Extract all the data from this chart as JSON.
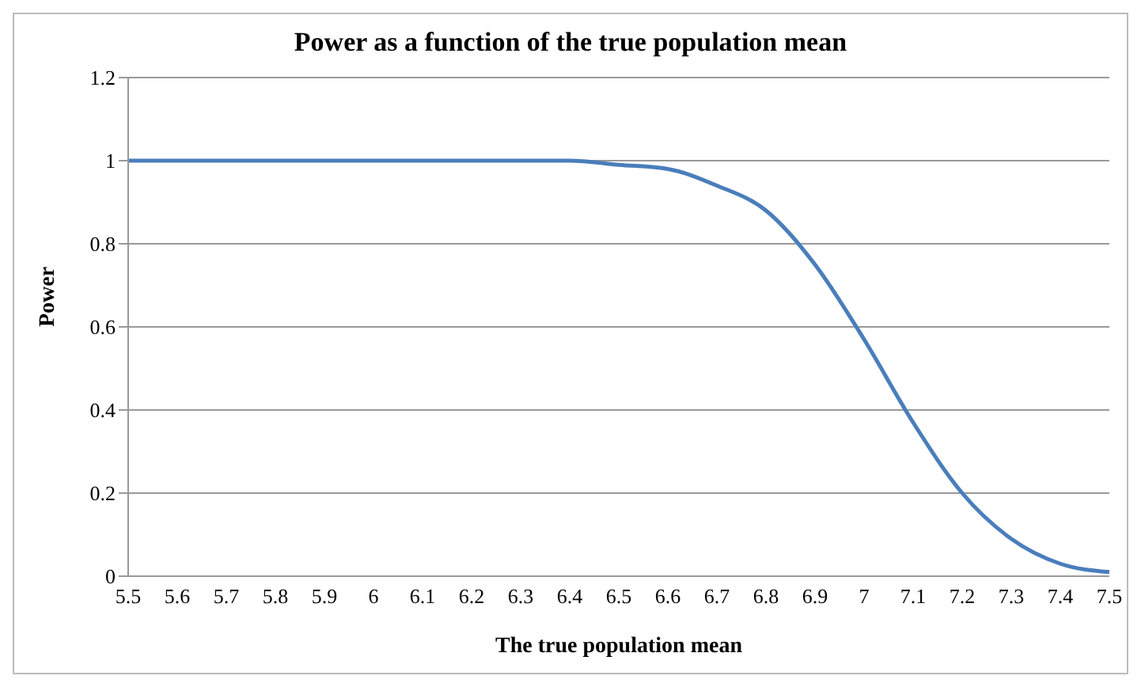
{
  "chart_data": {
    "type": "line",
    "title": "Power as a function of the true population mean",
    "xlabel": "The true population mean",
    "ylabel": "Power",
    "categories": [
      "5.5",
      "5.6",
      "5.7",
      "5.8",
      "5.9",
      "6",
      "6.1",
      "6.2",
      "6.3",
      "6.4",
      "6.5",
      "6.6",
      "6.7",
      "6.8",
      "6.9",
      "7",
      "7.1",
      "7.2",
      "7.3",
      "7.4",
      "7.5"
    ],
    "series": [
      {
        "color": "#4a7ebb",
        "values": [
          1,
          1,
          1,
          1,
          1,
          1,
          1,
          1,
          1,
          1,
          0.99,
          0.98,
          0.94,
          0.88,
          0.75,
          0.57,
          0.37,
          0.2,
          0.09,
          0.03,
          0.01
        ]
      }
    ],
    "ylim": [
      0,
      1.2
    ],
    "yticks": [
      0,
      0.2,
      0.4,
      0.6,
      0.8,
      1,
      1.2
    ],
    "grid": "y",
    "legend": false,
    "marker": "none",
    "line_style": "solid"
  }
}
